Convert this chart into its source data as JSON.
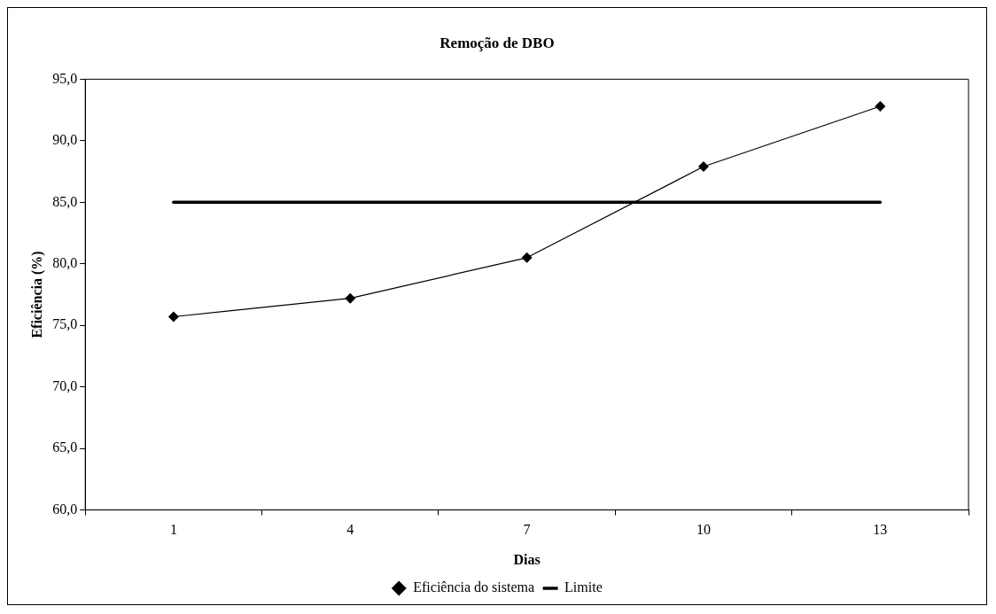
{
  "chart_data": {
    "type": "line",
    "title": "Remoção de DBO",
    "xlabel": "Dias",
    "ylabel": "Eficiência (%)",
    "categories": [
      "1",
      "4",
      "7",
      "10",
      "13"
    ],
    "series": [
      {
        "name": "Eficiência do sistema",
        "color": "#000000",
        "values": [
          75.7,
          77.2,
          80.5,
          87.9,
          92.8
        ],
        "marker": "diamond",
        "line_style": "solid"
      },
      {
        "name": "Limite",
        "color": "#000000",
        "values": [
          85,
          85,
          85,
          85,
          85
        ],
        "marker": "none",
        "line_style": "solid"
      }
    ],
    "ylim": [
      60,
      95
    ],
    "yticks": [
      {
        "value": 60,
        "label": "60,0"
      },
      {
        "value": 65,
        "label": "65,0"
      },
      {
        "value": 70,
        "label": "70,0"
      },
      {
        "value": 75,
        "label": "75,0"
      },
      {
        "value": 80,
        "label": "80,0"
      },
      {
        "value": 85,
        "label": "85,0"
      },
      {
        "value": 90,
        "label": "90,0"
      },
      {
        "value": 95,
        "label": "95,0"
      }
    ],
    "grid": false,
    "legend": "bottom"
  }
}
